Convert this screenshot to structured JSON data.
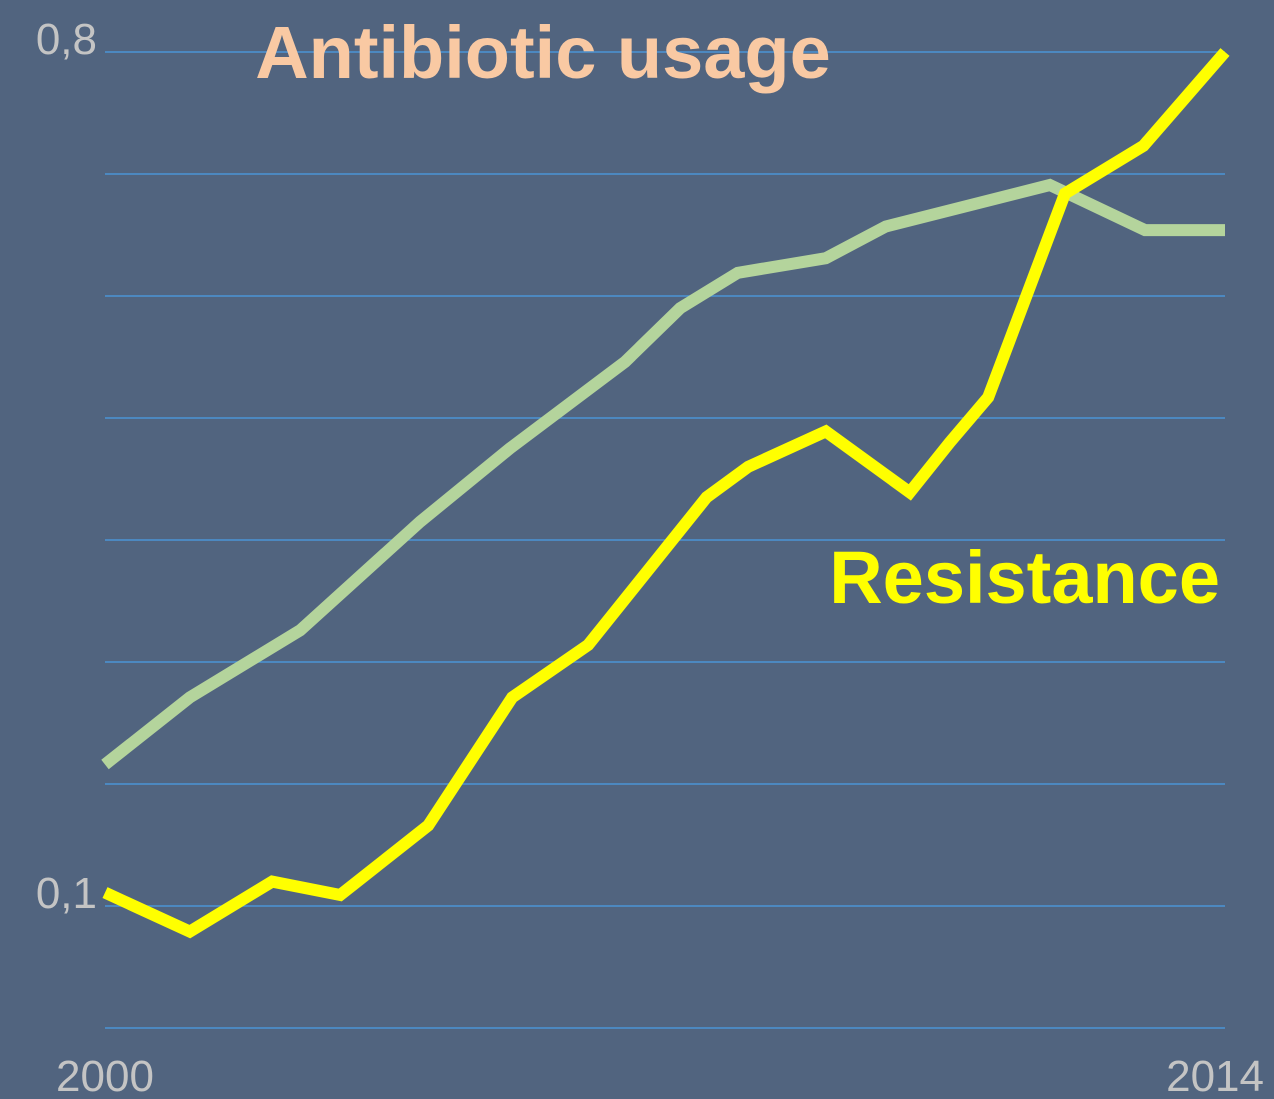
{
  "chart_data": {
    "type": "line",
    "xlim": [
      2000,
      2014
    ],
    "xticks": [
      2000,
      2014
    ],
    "ylim": [
      0,
      0.8
    ],
    "yticks": [
      {
        "value": 0.1,
        "label": "0,1"
      },
      {
        "value": 0.8,
        "label": "0,8"
      }
    ],
    "ygrid": [
      0,
      0.1,
      0.2,
      0.3,
      0.4,
      0.5,
      0.6,
      0.7,
      0.8
    ],
    "grid": true,
    "grid_color": "#4a93d6",
    "series": [
      {
        "name": "Antibiotic usage",
        "color": "#b4d49c",
        "label_color": "#f9c9a3",
        "x": [
          2000,
          2001.06,
          2002.44,
          2003.94,
          2005.06,
          2006.5,
          2007.19,
          2007.91,
          2009.01,
          2009.76,
          2011.81,
          2013,
          2014
        ],
        "values": [
          0.216,
          0.271,
          0.326,
          0.415,
          0.475,
          0.546,
          0.59,
          0.619,
          0.631,
          0.657,
          0.691,
          0.654,
          0.654
        ]
      },
      {
        "name": "Resistance",
        "color": "#ffff00",
        "label_color": "#ffff00",
        "x": [
          2000,
          2001.06,
          2002.09,
          2002.94,
          2004.04,
          2005.09,
          2006.04,
          2007.52,
          2008.04,
          2009.01,
          2010.06,
          2010.56,
          2011.04,
          2012,
          2012.98,
          2014
        ],
        "values": [
          0.111,
          0.079,
          0.12,
          0.109,
          0.166,
          0.271,
          0.314,
          0.435,
          0.46,
          0.489,
          0.439,
          0.48,
          0.517,
          0.684,
          0.723,
          0.8
        ]
      }
    ]
  }
}
